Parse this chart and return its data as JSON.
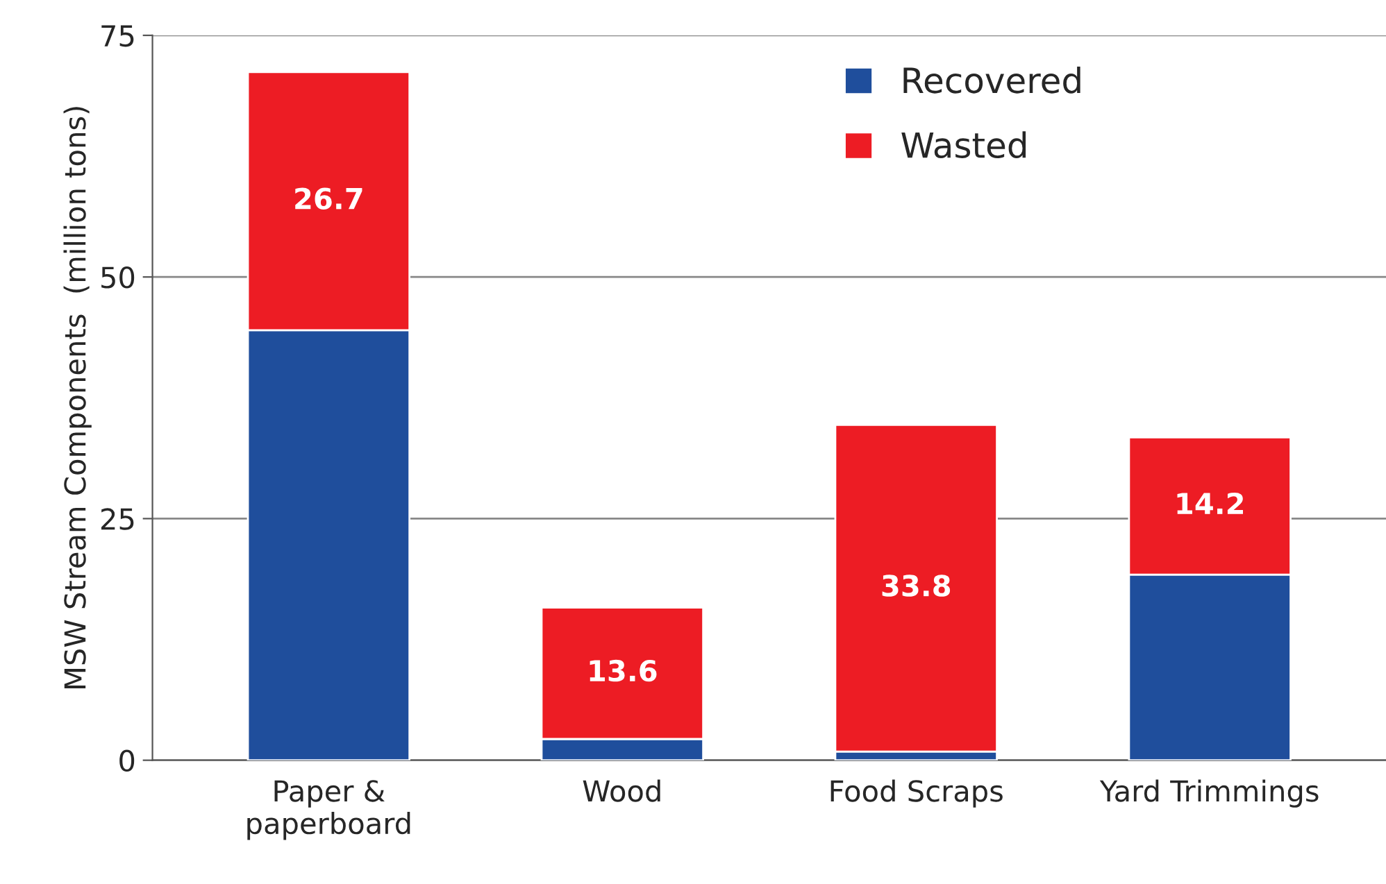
{
  "chart_data": {
    "type": "bar",
    "stacked": true,
    "categories": [
      "Paper &\npaperboard",
      "Wood",
      "Food Scraps",
      "Yard Trimmings"
    ],
    "ylabel": "MSW Stream Components  (million tons)",
    "series": [
      {
        "name": "Recovered",
        "color": "#1f4e9c",
        "values": [
          44.5,
          2.2,
          0.9,
          19.2
        ]
      },
      {
        "name": "Wasted",
        "color": "#ed1c24",
        "values": [
          26.7,
          13.6,
          33.8,
          14.2
        ],
        "value_labels": [
          "26.7",
          "13.6",
          "33.8",
          "14.2"
        ]
      }
    ],
    "ylim": [
      0,
      75
    ],
    "yticks": [
      0,
      25,
      50,
      75
    ],
    "grid": "y",
    "legend": "top right"
  }
}
